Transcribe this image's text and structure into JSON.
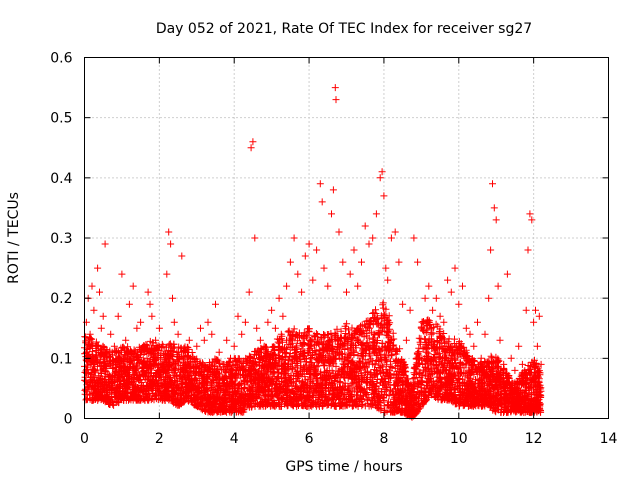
{
  "chart_data": {
    "type": "scatter",
    "title": "Day 052 of 2021, Rate Of TEC Index for receiver sg27",
    "xlabel": "GPS time / hours",
    "ylabel": "ROTI / TECUs",
    "xlim": [
      0,
      14
    ],
    "ylim": [
      0,
      0.6
    ],
    "xticks": [
      0,
      2,
      4,
      6,
      8,
      10,
      12,
      14
    ],
    "yticks": [
      0,
      0.1,
      0.2,
      0.3,
      0.4,
      0.5,
      0.6
    ],
    "xtick_labels": [
      "0",
      "2",
      "4",
      "6",
      "8",
      "10",
      "12",
      "14"
    ],
    "ytick_labels": [
      "0",
      "0.1",
      "0.2",
      "0.3",
      "0.4",
      "0.5",
      "0.6"
    ],
    "grid": true,
    "marker": "+",
    "color": "#ff0000",
    "series": [
      {
        "name": "ROTI",
        "points": [
          [
            0.05,
            0.16
          ],
          [
            0.1,
            0.2
          ],
          [
            0.15,
            0.14
          ],
          [
            0.2,
            0.22
          ],
          [
            0.25,
            0.18
          ],
          [
            0.3,
            0.12
          ],
          [
            0.35,
            0.25
          ],
          [
            0.4,
            0.21
          ],
          [
            0.45,
            0.15
          ],
          [
            0.5,
            0.17
          ],
          [
            0.55,
            0.29
          ],
          [
            0.6,
            0.11
          ],
          [
            0.7,
            0.14
          ],
          [
            0.8,
            0.12
          ],
          [
            0.9,
            0.17
          ],
          [
            1.0,
            0.24
          ],
          [
            1.1,
            0.13
          ],
          [
            1.2,
            0.19
          ],
          [
            1.3,
            0.22
          ],
          [
            1.4,
            0.15
          ],
          [
            1.5,
            0.16
          ],
          [
            1.6,
            0.12
          ],
          [
            1.7,
            0.21
          ],
          [
            1.75,
            0.19
          ],
          [
            1.8,
            0.17
          ],
          [
            1.9,
            0.13
          ],
          [
            2.0,
            0.15
          ],
          [
            2.1,
            0.12
          ],
          [
            2.2,
            0.24
          ],
          [
            2.25,
            0.31
          ],
          [
            2.3,
            0.29
          ],
          [
            2.35,
            0.2
          ],
          [
            2.4,
            0.16
          ],
          [
            2.5,
            0.14
          ],
          [
            2.6,
            0.27
          ],
          [
            2.7,
            0.11
          ],
          [
            2.8,
            0.13
          ],
          [
            2.9,
            0.1
          ],
          [
            3.0,
            0.12
          ],
          [
            3.1,
            0.15
          ],
          [
            3.2,
            0.13
          ],
          [
            3.3,
            0.16
          ],
          [
            3.4,
            0.14
          ],
          [
            3.5,
            0.19
          ],
          [
            3.6,
            0.11
          ],
          [
            3.7,
            0.09
          ],
          [
            3.8,
            0.13
          ],
          [
            3.9,
            0.1
          ],
          [
            4.0,
            0.12
          ],
          [
            4.1,
            0.17
          ],
          [
            4.2,
            0.14
          ],
          [
            4.3,
            0.16
          ],
          [
            4.4,
            0.21
          ],
          [
            4.45,
            0.45
          ],
          [
            4.5,
            0.46
          ],
          [
            4.55,
            0.3
          ],
          [
            4.6,
            0.15
          ],
          [
            4.7,
            0.13
          ],
          [
            4.8,
            0.12
          ],
          [
            4.9,
            0.16
          ],
          [
            5.0,
            0.18
          ],
          [
            5.1,
            0.15
          ],
          [
            5.2,
            0.2
          ],
          [
            5.3,
            0.17
          ],
          [
            5.4,
            0.22
          ],
          [
            5.5,
            0.26
          ],
          [
            5.6,
            0.3
          ],
          [
            5.7,
            0.24
          ],
          [
            5.8,
            0.21
          ],
          [
            5.9,
            0.27
          ],
          [
            6.0,
            0.29
          ],
          [
            6.1,
            0.23
          ],
          [
            6.2,
            0.28
          ],
          [
            6.3,
            0.39
          ],
          [
            6.35,
            0.36
          ],
          [
            6.4,
            0.25
          ],
          [
            6.5,
            0.22
          ],
          [
            6.6,
            0.34
          ],
          [
            6.65,
            0.38
          ],
          [
            6.7,
            0.55
          ],
          [
            6.72,
            0.53
          ],
          [
            6.8,
            0.31
          ],
          [
            6.9,
            0.26
          ],
          [
            7.0,
            0.21
          ],
          [
            7.1,
            0.24
          ],
          [
            7.2,
            0.28
          ],
          [
            7.3,
            0.22
          ],
          [
            7.4,
            0.26
          ],
          [
            7.5,
            0.32
          ],
          [
            7.6,
            0.29
          ],
          [
            7.7,
            0.3
          ],
          [
            7.8,
            0.34
          ],
          [
            7.9,
            0.4
          ],
          [
            7.95,
            0.41
          ],
          [
            8.0,
            0.37
          ],
          [
            8.05,
            0.25
          ],
          [
            8.1,
            0.23
          ],
          [
            8.2,
            0.3
          ],
          [
            8.3,
            0.31
          ],
          [
            8.4,
            0.26
          ],
          [
            8.5,
            0.19
          ],
          [
            8.6,
            0.13
          ],
          [
            8.7,
            0.18
          ],
          [
            8.8,
            0.3
          ],
          [
            8.9,
            0.26
          ],
          [
            9.0,
            0.15
          ],
          [
            9.1,
            0.2
          ],
          [
            9.2,
            0.22
          ],
          [
            9.3,
            0.18
          ],
          [
            9.4,
            0.2
          ],
          [
            9.5,
            0.17
          ],
          [
            9.6,
            0.16
          ],
          [
            9.7,
            0.23
          ],
          [
            9.8,
            0.21
          ],
          [
            9.9,
            0.25
          ],
          [
            10.0,
            0.19
          ],
          [
            10.1,
            0.22
          ],
          [
            10.2,
            0.15
          ],
          [
            10.3,
            0.14
          ],
          [
            10.4,
            0.12
          ],
          [
            10.5,
            0.16
          ],
          [
            10.6,
            0.1
          ],
          [
            10.7,
            0.14
          ],
          [
            10.8,
            0.2
          ],
          [
            10.85,
            0.28
          ],
          [
            10.9,
            0.39
          ],
          [
            10.95,
            0.35
          ],
          [
            11.0,
            0.33
          ],
          [
            11.05,
            0.22
          ],
          [
            11.1,
            0.13
          ],
          [
            11.2,
            0.09
          ],
          [
            11.3,
            0.24
          ],
          [
            11.4,
            0.1
          ],
          [
            11.5,
            0.08
          ],
          [
            11.6,
            0.12
          ],
          [
            11.7,
            0.09
          ],
          [
            11.8,
            0.18
          ],
          [
            11.85,
            0.28
          ],
          [
            11.9,
            0.34
          ],
          [
            11.95,
            0.33
          ],
          [
            12.0,
            0.16
          ],
          [
            12.05,
            0.18
          ],
          [
            12.1,
            0.12
          ],
          [
            12.15,
            0.17
          ],
          [
            12.2,
            0.09
          ]
        ]
      }
    ],
    "dense_envelope": {
      "note": "Dense cloud of ROTI points from ~0 to 12.2 hours; per-bin lower and upper bounds in data units.",
      "x_start": 0,
      "x_end": 12.2,
      "bins": [
        [
          0.0,
          0.03,
          0.14
        ],
        [
          0.25,
          0.03,
          0.13
        ],
        [
          0.5,
          0.03,
          0.12
        ],
        [
          0.75,
          0.02,
          0.11
        ],
        [
          1.0,
          0.03,
          0.12
        ],
        [
          1.25,
          0.03,
          0.12
        ],
        [
          1.5,
          0.03,
          0.12
        ],
        [
          1.75,
          0.03,
          0.13
        ],
        [
          2.0,
          0.03,
          0.12
        ],
        [
          2.25,
          0.03,
          0.13
        ],
        [
          2.5,
          0.02,
          0.12
        ],
        [
          2.75,
          0.03,
          0.12
        ],
        [
          3.0,
          0.02,
          0.1
        ],
        [
          3.25,
          0.01,
          0.09
        ],
        [
          3.5,
          0.01,
          0.1
        ],
        [
          3.75,
          0.01,
          0.09
        ],
        [
          4.0,
          0.01,
          0.1
        ],
        [
          4.25,
          0.01,
          0.1
        ],
        [
          4.5,
          0.02,
          0.11
        ],
        [
          4.75,
          0.02,
          0.12
        ],
        [
          5.0,
          0.02,
          0.12
        ],
        [
          5.25,
          0.02,
          0.14
        ],
        [
          5.5,
          0.02,
          0.15
        ],
        [
          5.75,
          0.02,
          0.15
        ],
        [
          6.0,
          0.02,
          0.15
        ],
        [
          6.25,
          0.02,
          0.14
        ],
        [
          6.5,
          0.02,
          0.14
        ],
        [
          6.75,
          0.02,
          0.15
        ],
        [
          7.0,
          0.02,
          0.16
        ],
        [
          7.25,
          0.02,
          0.15
        ],
        [
          7.5,
          0.02,
          0.16
        ],
        [
          7.75,
          0.02,
          0.18
        ],
        [
          8.0,
          0.01,
          0.2
        ],
        [
          8.25,
          0.01,
          0.15
        ],
        [
          8.5,
          0.01,
          0.1
        ],
        [
          8.75,
          0.0,
          0.06
        ],
        [
          9.0,
          0.02,
          0.16
        ],
        [
          9.25,
          0.04,
          0.17
        ],
        [
          9.5,
          0.03,
          0.15
        ],
        [
          9.75,
          0.03,
          0.14
        ],
        [
          10.0,
          0.02,
          0.13
        ],
        [
          10.25,
          0.02,
          0.11
        ],
        [
          10.5,
          0.02,
          0.09
        ],
        [
          10.75,
          0.02,
          0.1
        ],
        [
          11.0,
          0.01,
          0.11
        ],
        [
          11.25,
          0.01,
          0.08
        ],
        [
          11.5,
          0.01,
          0.06
        ],
        [
          11.75,
          0.01,
          0.08
        ],
        [
          12.0,
          0.01,
          0.1
        ],
        [
          12.2,
          0.01,
          0.08
        ]
      ]
    }
  }
}
